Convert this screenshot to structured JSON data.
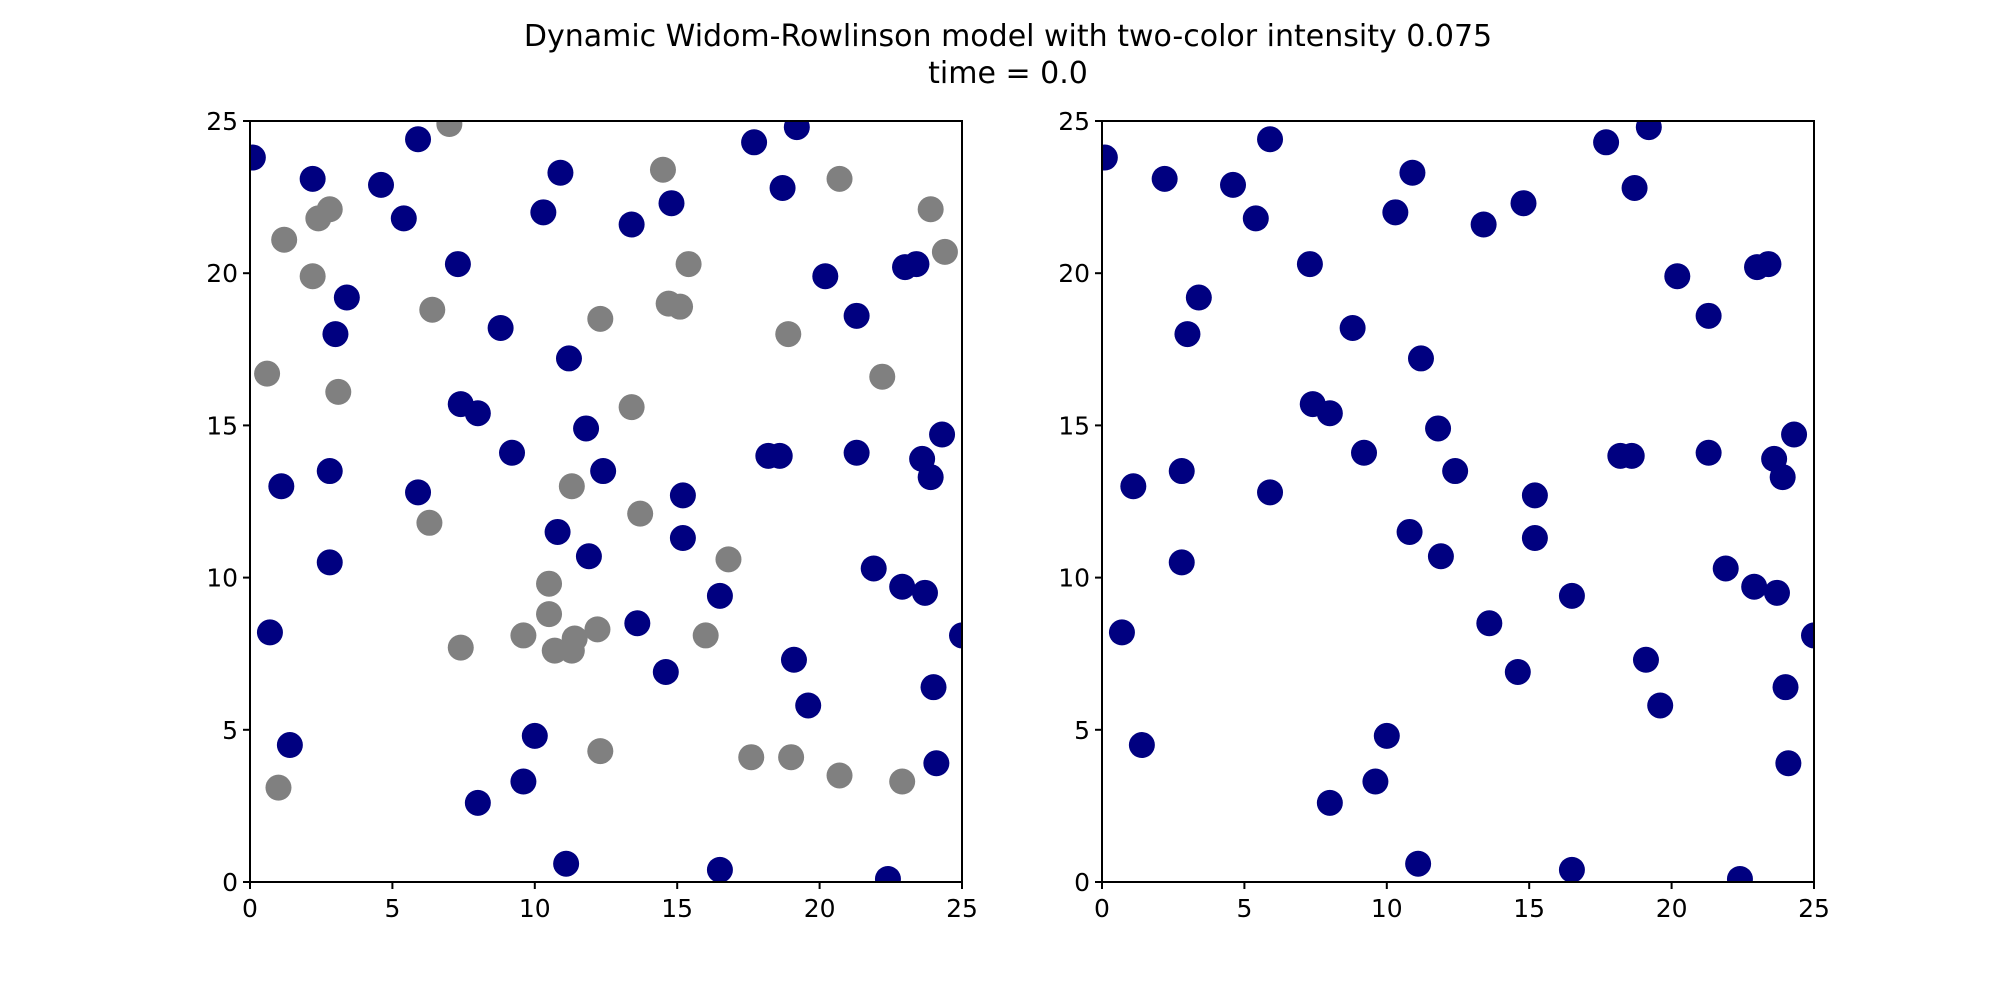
{
  "figure": {
    "title_line1": "Dynamic Widom-Rowlinson model with two-color intensity 0.075",
    "title_line2": "time = 0.0"
  },
  "colors": {
    "blue": "#000080",
    "gray": "#808080"
  },
  "chart_data": [
    {
      "type": "scatter",
      "xlim": [
        0,
        25
      ],
      "ylim": [
        0,
        25
      ],
      "xticks": [
        0,
        5,
        10,
        15,
        20,
        25
      ],
      "yticks": [
        0,
        5,
        10,
        15,
        20,
        25
      ],
      "grid": false,
      "series": [
        {
          "color": "#000080",
          "points": [
            [
              0.1,
              23.8
            ],
            [
              2.2,
              23.1
            ],
            [
              4.6,
              22.9
            ],
            [
              5.9,
              24.4
            ],
            [
              5.4,
              21.8
            ],
            [
              10.9,
              23.3
            ],
            [
              10.3,
              22.0
            ],
            [
              13.4,
              21.6
            ],
            [
              14.8,
              22.3
            ],
            [
              17.7,
              24.3
            ],
            [
              19.2,
              24.8
            ],
            [
              18.7,
              22.8
            ],
            [
              3.4,
              19.2
            ],
            [
              3.0,
              18.0
            ],
            [
              7.3,
              20.3
            ],
            [
              8.8,
              18.2
            ],
            [
              11.2,
              17.2
            ],
            [
              20.2,
              19.9
            ],
            [
              21.3,
              18.6
            ],
            [
              23.0,
              20.2
            ],
            [
              23.4,
              20.3
            ],
            [
              7.4,
              15.7
            ],
            [
              8.0,
              15.4
            ],
            [
              9.2,
              14.1
            ],
            [
              11.8,
              14.9
            ],
            [
              12.4,
              13.5
            ],
            [
              18.2,
              14.0
            ],
            [
              18.6,
              14.0
            ],
            [
              21.3,
              14.1
            ],
            [
              23.6,
              13.9
            ],
            [
              23.9,
              13.3
            ],
            [
              24.3,
              14.7
            ],
            [
              1.1,
              13.0
            ],
            [
              2.8,
              13.5
            ],
            [
              5.9,
              12.8
            ],
            [
              10.8,
              11.5
            ],
            [
              11.9,
              10.7
            ],
            [
              15.2,
              12.7
            ],
            [
              15.2,
              11.3
            ],
            [
              2.8,
              10.5
            ],
            [
              21.9,
              10.3
            ],
            [
              22.9,
              9.7
            ],
            [
              23.7,
              9.5
            ],
            [
              16.5,
              9.4
            ],
            [
              0.7,
              8.2
            ],
            [
              13.6,
              8.5
            ],
            [
              14.6,
              6.9
            ],
            [
              19.1,
              7.3
            ],
            [
              25.0,
              8.1
            ],
            [
              19.6,
              5.8
            ],
            [
              24.0,
              6.4
            ],
            [
              10.0,
              4.8
            ],
            [
              1.4,
              4.5
            ],
            [
              9.6,
              3.3
            ],
            [
              8.0,
              2.6
            ],
            [
              24.1,
              3.9
            ],
            [
              11.1,
              0.6
            ],
            [
              16.5,
              0.4
            ],
            [
              22.4,
              0.1
            ]
          ]
        },
        {
          "color": "#808080",
          "points": [
            [
              7.0,
              24.9
            ],
            [
              14.5,
              23.4
            ],
            [
              20.7,
              23.1
            ],
            [
              23.9,
              22.1
            ],
            [
              24.4,
              20.7
            ],
            [
              2.4,
              21.8
            ],
            [
              2.8,
              22.1
            ],
            [
              1.2,
              21.1
            ],
            [
              2.2,
              19.9
            ],
            [
              15.4,
              20.3
            ],
            [
              14.7,
              19.0
            ],
            [
              15.1,
              18.9
            ],
            [
              6.4,
              18.8
            ],
            [
              12.3,
              18.5
            ],
            [
              18.9,
              18.0
            ],
            [
              0.6,
              16.7
            ],
            [
              3.1,
              16.1
            ],
            [
              22.2,
              16.6
            ],
            [
              13.4,
              15.6
            ],
            [
              11.3,
              13.0
            ],
            [
              6.3,
              11.8
            ],
            [
              13.7,
              12.1
            ],
            [
              16.8,
              10.6
            ],
            [
              10.5,
              9.8
            ],
            [
              10.5,
              8.8
            ],
            [
              7.4,
              7.7
            ],
            [
              9.6,
              8.1
            ],
            [
              10.7,
              7.6
            ],
            [
              11.3,
              7.6
            ],
            [
              11.4,
              8.0
            ],
            [
              12.2,
              8.3
            ],
            [
              16.0,
              8.1
            ],
            [
              12.3,
              4.3
            ],
            [
              17.6,
              4.1
            ],
            [
              19.0,
              4.1
            ],
            [
              20.7,
              3.5
            ],
            [
              22.9,
              3.3
            ],
            [
              1.0,
              3.1
            ]
          ]
        }
      ]
    },
    {
      "type": "scatter",
      "xlim": [
        0,
        25
      ],
      "ylim": [
        0,
        25
      ],
      "xticks": [
        0,
        5,
        10,
        15,
        20,
        25
      ],
      "yticks": [
        0,
        5,
        10,
        15,
        20,
        25
      ],
      "grid": false,
      "series": [
        {
          "color": "#000080",
          "points": [
            [
              0.1,
              23.8
            ],
            [
              2.2,
              23.1
            ],
            [
              4.6,
              22.9
            ],
            [
              5.9,
              24.4
            ],
            [
              5.4,
              21.8
            ],
            [
              10.9,
              23.3
            ],
            [
              10.3,
              22.0
            ],
            [
              13.4,
              21.6
            ],
            [
              14.8,
              22.3
            ],
            [
              17.7,
              24.3
            ],
            [
              19.2,
              24.8
            ],
            [
              18.7,
              22.8
            ],
            [
              3.4,
              19.2
            ],
            [
              3.0,
              18.0
            ],
            [
              7.3,
              20.3
            ],
            [
              8.8,
              18.2
            ],
            [
              11.2,
              17.2
            ],
            [
              20.2,
              19.9
            ],
            [
              21.3,
              18.6
            ],
            [
              23.0,
              20.2
            ],
            [
              23.4,
              20.3
            ],
            [
              7.4,
              15.7
            ],
            [
              8.0,
              15.4
            ],
            [
              9.2,
              14.1
            ],
            [
              11.8,
              14.9
            ],
            [
              12.4,
              13.5
            ],
            [
              18.2,
              14.0
            ],
            [
              18.6,
              14.0
            ],
            [
              21.3,
              14.1
            ],
            [
              23.6,
              13.9
            ],
            [
              23.9,
              13.3
            ],
            [
              24.3,
              14.7
            ],
            [
              1.1,
              13.0
            ],
            [
              2.8,
              13.5
            ],
            [
              5.9,
              12.8
            ],
            [
              10.8,
              11.5
            ],
            [
              11.9,
              10.7
            ],
            [
              15.2,
              12.7
            ],
            [
              15.2,
              11.3
            ],
            [
              2.8,
              10.5
            ],
            [
              21.9,
              10.3
            ],
            [
              22.9,
              9.7
            ],
            [
              23.7,
              9.5
            ],
            [
              16.5,
              9.4
            ],
            [
              0.7,
              8.2
            ],
            [
              13.6,
              8.5
            ],
            [
              14.6,
              6.9
            ],
            [
              19.1,
              7.3
            ],
            [
              25.0,
              8.1
            ],
            [
              19.6,
              5.8
            ],
            [
              24.0,
              6.4
            ],
            [
              10.0,
              4.8
            ],
            [
              1.4,
              4.5
            ],
            [
              9.6,
              3.3
            ],
            [
              8.0,
              2.6
            ],
            [
              24.1,
              3.9
            ],
            [
              11.1,
              0.6
            ],
            [
              16.5,
              0.4
            ],
            [
              22.4,
              0.1
            ]
          ]
        }
      ]
    }
  ]
}
